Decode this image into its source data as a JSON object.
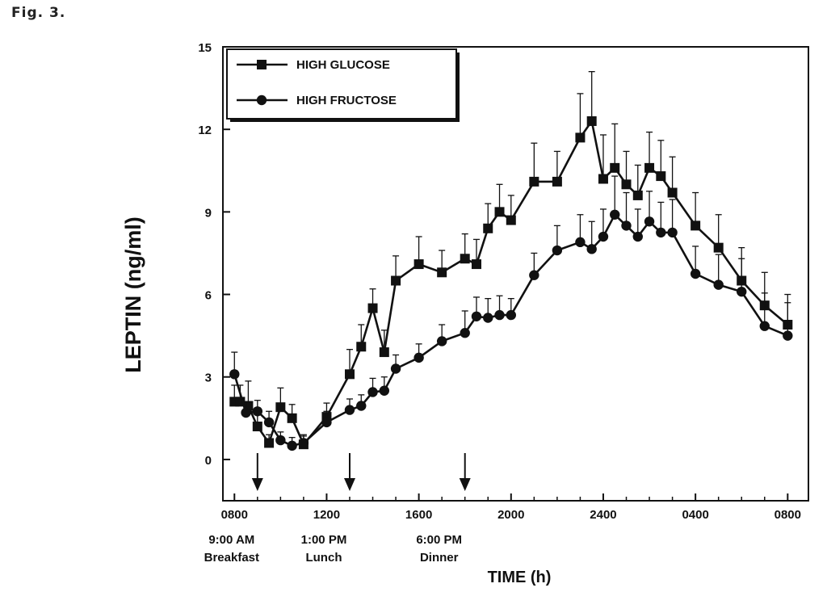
{
  "figure_label": "Fig. 3.",
  "chart_data": {
    "type": "line",
    "title": "",
    "xlabel": "TIME (h)",
    "ylabel": "LEPTIN (ng/ml)",
    "ylim": [
      -1.5,
      15
    ],
    "xlim": [
      7.5,
      32.9
    ],
    "yticks": [
      0,
      3,
      6,
      9,
      12,
      15
    ],
    "xticks": [
      {
        "value": 8,
        "label": "0800"
      },
      {
        "value": 12,
        "label": "1200"
      },
      {
        "value": 16,
        "label": "1600"
      },
      {
        "value": 20,
        "label": "2000"
      },
      {
        "value": 24,
        "label": "2400"
      },
      {
        "value": 28,
        "label": "0400"
      },
      {
        "value": 32,
        "label": "0800"
      }
    ],
    "grid": false,
    "legend_position": "top-left",
    "series": [
      {
        "name": "HIGH GLUCOSE",
        "marker": "square",
        "points": [
          {
            "x": 8.0,
            "y": 2.1,
            "err": 0.6
          },
          {
            "x": 8.25,
            "y": 2.1,
            "err": 0.6
          },
          {
            "x": 8.6,
            "y": 1.95,
            "err": 0.9
          },
          {
            "x": 9.0,
            "y": 1.2,
            "err": 0.5
          },
          {
            "x": 9.5,
            "y": 0.6,
            "err": 0.3
          },
          {
            "x": 10.0,
            "y": 1.9,
            "err": 0.7
          },
          {
            "x": 10.5,
            "y": 1.5,
            "err": 0.5
          },
          {
            "x": 11.0,
            "y": 0.55,
            "err": 0.3
          },
          {
            "x": 12.0,
            "y": 1.55,
            "err": 0.5
          },
          {
            "x": 13.0,
            "y": 3.1,
            "err": 0.9
          },
          {
            "x": 13.5,
            "y": 4.1,
            "err": 0.8
          },
          {
            "x": 14.0,
            "y": 5.5,
            "err": 0.7
          },
          {
            "x": 14.5,
            "y": 3.9,
            "err": 0.8
          },
          {
            "x": 15.0,
            "y": 6.5,
            "err": 0.9
          },
          {
            "x": 16.0,
            "y": 7.1,
            "err": 1.0
          },
          {
            "x": 17.0,
            "y": 6.8,
            "err": 0.8
          },
          {
            "x": 18.0,
            "y": 7.3,
            "err": 0.9
          },
          {
            "x": 18.5,
            "y": 7.1,
            "err": 0.9
          },
          {
            "x": 19.0,
            "y": 8.4,
            "err": 0.9
          },
          {
            "x": 19.5,
            "y": 9.0,
            "err": 1.0
          },
          {
            "x": 20.0,
            "y": 8.7,
            "err": 0.9
          },
          {
            "x": 21.0,
            "y": 10.1,
            "err": 1.4
          },
          {
            "x": 22.0,
            "y": 10.1,
            "err": 1.1
          },
          {
            "x": 23.0,
            "y": 11.7,
            "err": 1.6
          },
          {
            "x": 23.5,
            "y": 12.3,
            "err": 1.8
          },
          {
            "x": 24.0,
            "y": 10.2,
            "err": 1.6
          },
          {
            "x": 24.5,
            "y": 10.6,
            "err": 1.6
          },
          {
            "x": 25.0,
            "y": 10.0,
            "err": 1.2
          },
          {
            "x": 25.5,
            "y": 9.6,
            "err": 1.1
          },
          {
            "x": 26.0,
            "y": 10.6,
            "err": 1.3
          },
          {
            "x": 26.5,
            "y": 10.3,
            "err": 1.3
          },
          {
            "x": 27.0,
            "y": 9.7,
            "err": 1.3
          },
          {
            "x": 28.0,
            "y": 8.5,
            "err": 1.2
          },
          {
            "x": 29.0,
            "y": 7.7,
            "err": 1.2
          },
          {
            "x": 30.0,
            "y": 6.5,
            "err": 1.2
          },
          {
            "x": 31.0,
            "y": 5.6,
            "err": 1.2
          },
          {
            "x": 32.0,
            "y": 4.9,
            "err": 1.1
          }
        ]
      },
      {
        "name": "HIGH FRUCTOSE",
        "marker": "circle",
        "points": [
          {
            "x": 8.0,
            "y": 3.1,
            "err": 0.8
          },
          {
            "x": 8.5,
            "y": 1.7,
            "err": 0.4
          },
          {
            "x": 9.0,
            "y": 1.75,
            "err": 0.4
          },
          {
            "x": 9.5,
            "y": 1.35,
            "err": 0.4
          },
          {
            "x": 10.0,
            "y": 0.7,
            "err": 0.3
          },
          {
            "x": 10.5,
            "y": 0.5,
            "err": 0.3
          },
          {
            "x": 11.0,
            "y": 0.6,
            "err": 0.3
          },
          {
            "x": 12.0,
            "y": 1.35,
            "err": 0.4
          },
          {
            "x": 13.0,
            "y": 1.8,
            "err": 0.4
          },
          {
            "x": 13.5,
            "y": 1.95,
            "err": 0.4
          },
          {
            "x": 14.0,
            "y": 2.45,
            "err": 0.5
          },
          {
            "x": 14.5,
            "y": 2.5,
            "err": 0.5
          },
          {
            "x": 15.0,
            "y": 3.3,
            "err": 0.5
          },
          {
            "x": 16.0,
            "y": 3.7,
            "err": 0.5
          },
          {
            "x": 17.0,
            "y": 4.3,
            "err": 0.6
          },
          {
            "x": 18.0,
            "y": 4.6,
            "err": 0.8
          },
          {
            "x": 18.5,
            "y": 5.2,
            "err": 0.7
          },
          {
            "x": 19.0,
            "y": 5.15,
            "err": 0.7
          },
          {
            "x": 19.5,
            "y": 5.25,
            "err": 0.7
          },
          {
            "x": 20.0,
            "y": 5.25,
            "err": 0.6
          },
          {
            "x": 21.0,
            "y": 6.7,
            "err": 0.8
          },
          {
            "x": 22.0,
            "y": 7.6,
            "err": 0.9
          },
          {
            "x": 23.0,
            "y": 7.9,
            "err": 1.0
          },
          {
            "x": 23.5,
            "y": 7.65,
            "err": 1.0
          },
          {
            "x": 24.0,
            "y": 8.1,
            "err": 1.0
          },
          {
            "x": 24.5,
            "y": 8.9,
            "err": 1.4
          },
          {
            "x": 25.0,
            "y": 8.5,
            "err": 1.2
          },
          {
            "x": 25.5,
            "y": 8.1,
            "err": 1.0
          },
          {
            "x": 26.0,
            "y": 8.65,
            "err": 1.1
          },
          {
            "x": 26.5,
            "y": 8.25,
            "err": 1.1
          },
          {
            "x": 27.0,
            "y": 8.25,
            "err": 1.2
          },
          {
            "x": 28.0,
            "y": 6.75,
            "err": 1.0
          },
          {
            "x": 29.0,
            "y": 6.35,
            "err": 1.1
          },
          {
            "x": 30.0,
            "y": 6.1,
            "err": 1.2
          },
          {
            "x": 31.0,
            "y": 4.85,
            "err": 1.2
          },
          {
            "x": 32.0,
            "y": 4.5,
            "err": 1.2
          }
        ]
      }
    ],
    "annotations": [
      {
        "x": 9.0,
        "time": "9:00 AM",
        "meal": "Breakfast"
      },
      {
        "x": 13.0,
        "time": "1:00 PM",
        "meal": "Lunch"
      },
      {
        "x": 18.0,
        "time": "6:00 PM",
        "meal": "Dinner"
      }
    ]
  }
}
